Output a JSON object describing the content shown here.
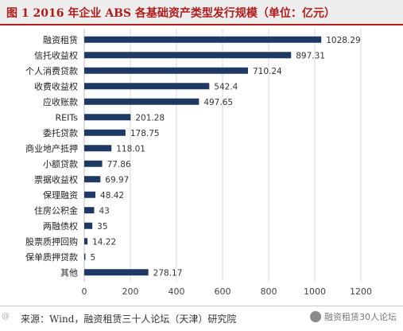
{
  "header": {
    "title": "图 1 2016 年企业 ABS 各基础资产类型发行规模（单位：亿元）"
  },
  "footer": {
    "source": "来源：Wind，融资租赁三十人论坛（天津）研究院",
    "watermark": "融资租赁30人论坛",
    "corner_mark": "@"
  },
  "colors": {
    "bar": "#1f3864",
    "title": "#b31b1b",
    "grid": "#d9d9d9"
  },
  "chart_data": {
    "type": "bar",
    "orientation": "horizontal",
    "title": "",
    "xlabel": "",
    "ylabel": "",
    "categories": [
      "融资租赁",
      "信托收益权",
      "个人消费贷款",
      "收费收益权",
      "应收账款",
      "REITs",
      "委托贷款",
      "商业地产抵押",
      "小额贷款",
      "票据收益权",
      "保理融资",
      "住房公积金",
      "两融债权",
      "股票质押回购",
      "保单质押贷款",
      "其他"
    ],
    "values": [
      1028.29,
      897.31,
      710.24,
      542.4,
      497.65,
      201.28,
      178.75,
      118.01,
      77.86,
      69.97,
      48.42,
      43,
      35,
      14.22,
      5,
      278.17
    ],
    "value_labels": [
      "1028.29",
      "897.31",
      "710.24",
      "542.4",
      "497.65",
      "201.28",
      "178.75",
      "118.01",
      "77.86",
      "69.97",
      "48.42",
      "43",
      "35",
      "14.22",
      "5",
      "278.17"
    ],
    "xlim": [
      0,
      1200
    ],
    "xticks": [
      "0",
      "200",
      "400",
      "600",
      "800",
      "1000",
      "1200"
    ],
    "xtick_values": [
      0,
      200,
      400,
      600,
      800,
      1000,
      1200
    ],
    "grid": true,
    "legend": "none"
  }
}
